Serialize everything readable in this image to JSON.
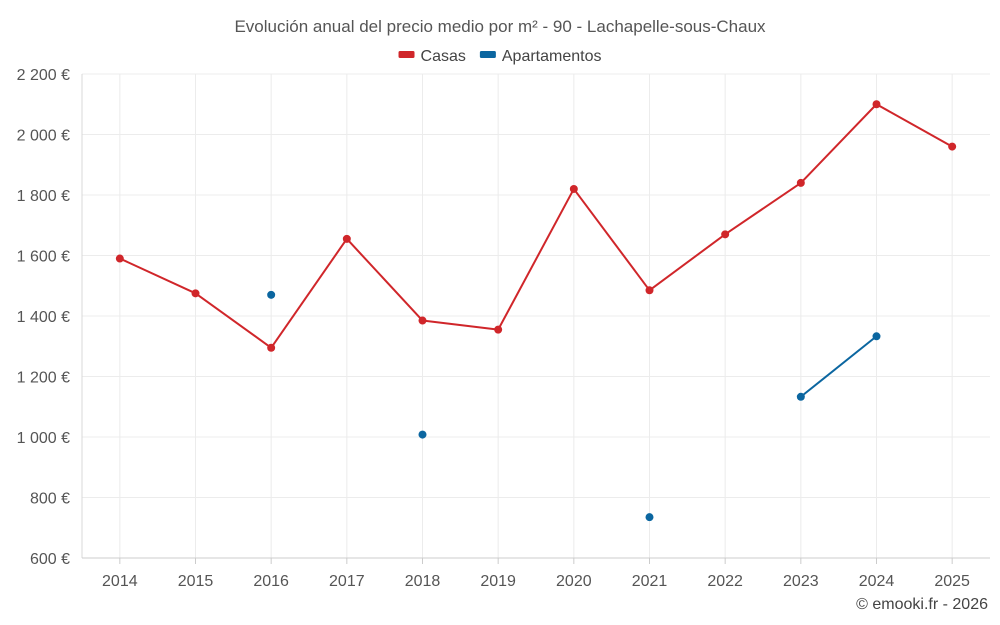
{
  "chart_data": {
    "type": "line",
    "title": "Evolución anual del precio medio por m² - 90 - Lachapelle-sous-Chaux",
    "xlabel": "",
    "ylabel": "",
    "categories": [
      "2014",
      "2015",
      "2016",
      "2017",
      "2018",
      "2019",
      "2020",
      "2021",
      "2022",
      "2023",
      "2024",
      "2025"
    ],
    "ylim": [
      600,
      2200
    ],
    "yticks": [
      600,
      800,
      1000,
      1200,
      1400,
      1600,
      1800,
      2000,
      2200
    ],
    "ytick_labels": [
      "600 €",
      "800 €",
      "1 000 €",
      "1 200 €",
      "1 400 €",
      "1 600 €",
      "1 800 €",
      "2 000 €",
      "2 200 €"
    ],
    "legend_position": "top-center",
    "grid": true,
    "series": [
      {
        "name": "Casas",
        "color": "#d0262a",
        "values": [
          1590,
          1475,
          1295,
          1655,
          1385,
          1355,
          1820,
          1485,
          1670,
          1840,
          2100,
          1960
        ]
      },
      {
        "name": "Apartamentos",
        "color": "#0b66a0",
        "values": [
          null,
          null,
          1470,
          null,
          1008,
          null,
          null,
          735,
          null,
          1133,
          1333,
          null
        ]
      }
    ]
  },
  "credit": "© emooki.fr - 2026"
}
